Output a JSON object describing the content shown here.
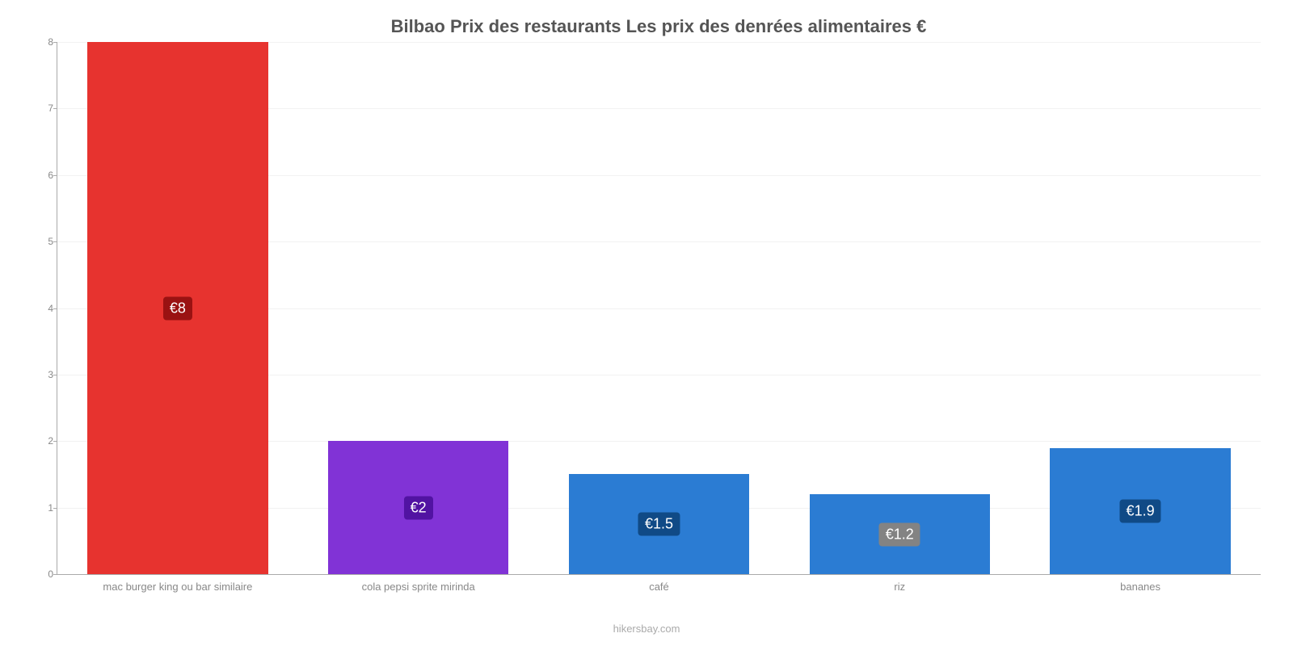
{
  "chart": {
    "type": "bar",
    "title": "Bilbao Prix des restaurants Les prix des denrées alimentaires €",
    "title_fontsize": 22,
    "title_color": "#555555",
    "credit": "hikersbay.com",
    "credit_color": "#aaaaaa",
    "credit_fontsize": 13,
    "background_color": "#ffffff",
    "grid_color": "#f2f2f2",
    "axis_color": "#aaaaaa",
    "ylim": [
      0,
      8
    ],
    "ytick_step": 1,
    "yticks": [
      0,
      1,
      2,
      3,
      4,
      5,
      6,
      7,
      8
    ],
    "ytick_fontsize": 12,
    "ytick_color": "#888888",
    "xlabel_fontsize": 13,
    "xlabel_color": "#888888",
    "bar_width_ratio": 0.75,
    "value_label_fontsize": 18,
    "value_label_text_color": "#ffffff",
    "categories": [
      "mac burger king ou bar similaire",
      "cola pepsi sprite mirinda",
      "café",
      "riz",
      "bananes"
    ],
    "values": [
      8,
      2,
      1.5,
      1.2,
      1.9
    ],
    "value_labels": [
      "€8",
      "€2",
      "€1.5",
      "€1.2",
      "€1.9"
    ],
    "bar_colors": [
      "#e7332f",
      "#8133d6",
      "#2b7cd3",
      "#2b7cd3",
      "#2b7cd3"
    ],
    "value_label_bgcolors": [
      "#9a1212",
      "#5113a2",
      "#104a86",
      "#838383",
      "#104a86"
    ]
  }
}
